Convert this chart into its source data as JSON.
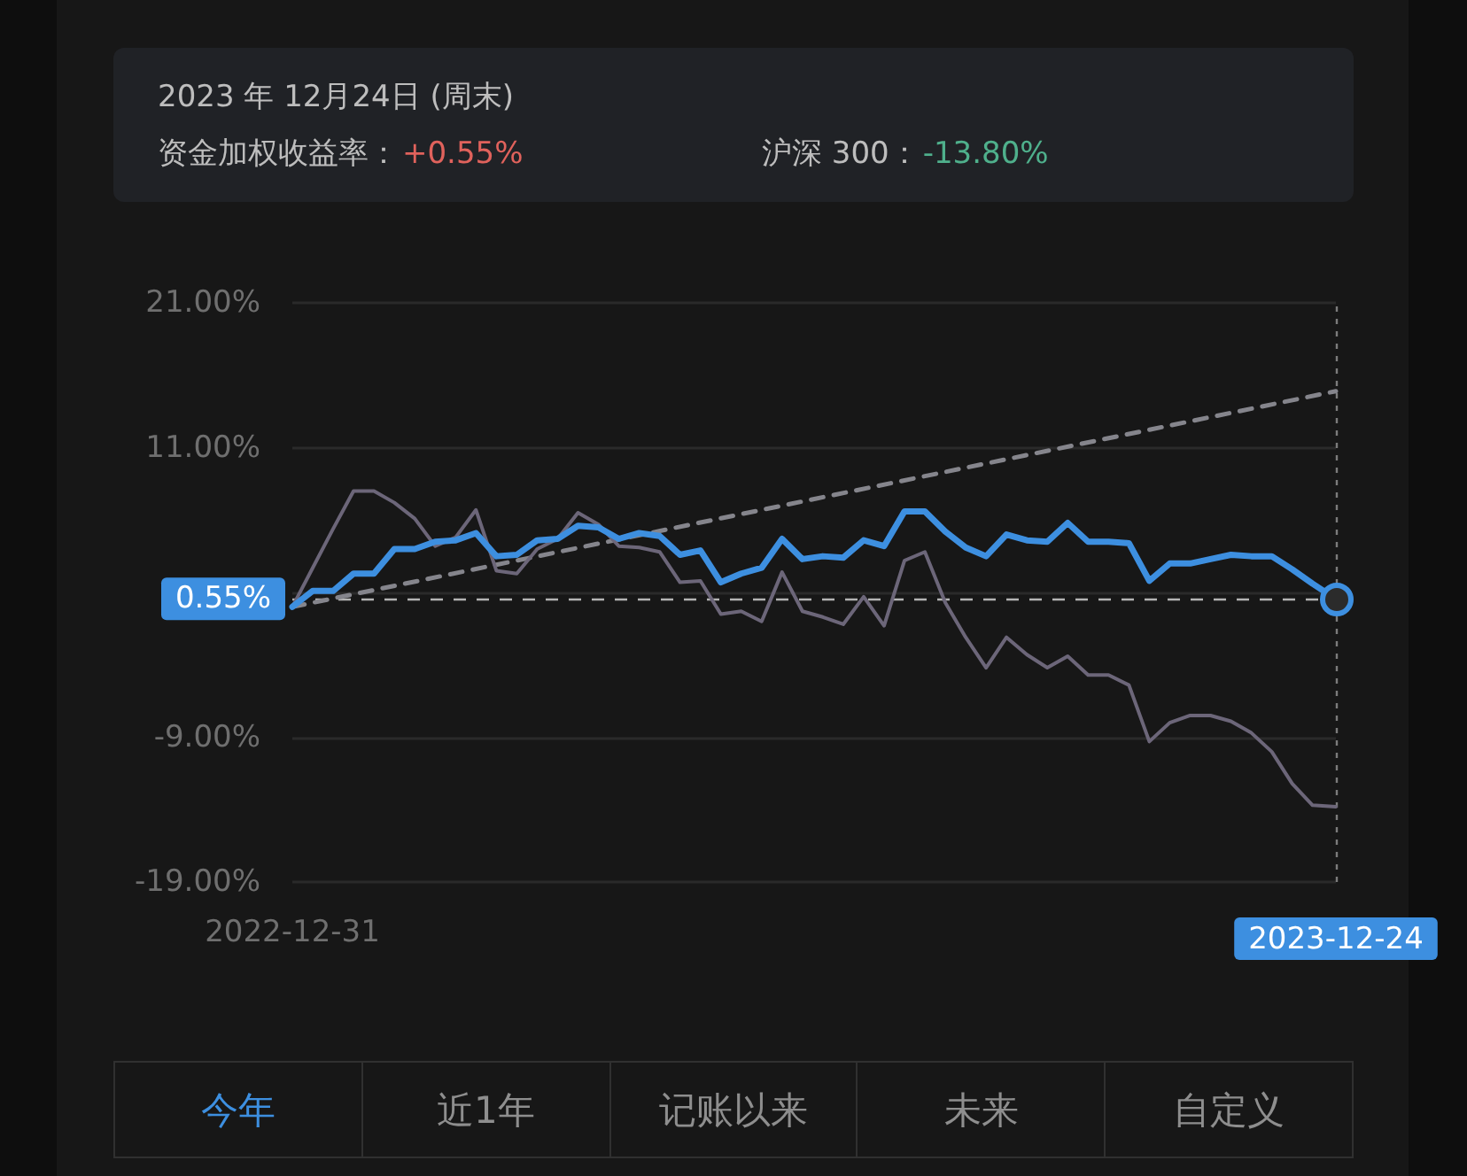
{
  "chart_data": {
    "type": "line",
    "x": [
      "2022-12-31",
      "2023-01-07",
      "2023-01-14",
      "2023-01-21",
      "2023-01-28",
      "2023-02-04",
      "2023-02-11",
      "2023-02-18",
      "2023-02-25",
      "2023-03-04",
      "2023-03-11",
      "2023-03-18",
      "2023-03-25",
      "2023-04-01",
      "2023-04-08",
      "2023-04-15",
      "2023-04-22",
      "2023-04-29",
      "2023-05-06",
      "2023-05-13",
      "2023-05-20",
      "2023-05-27",
      "2023-06-03",
      "2023-06-10",
      "2023-06-17",
      "2023-06-24",
      "2023-07-01",
      "2023-07-08",
      "2023-07-15",
      "2023-07-22",
      "2023-07-29",
      "2023-08-05",
      "2023-08-12",
      "2023-08-19",
      "2023-08-26",
      "2023-09-02",
      "2023-09-09",
      "2023-09-16",
      "2023-09-23",
      "2023-09-30",
      "2023-10-07",
      "2023-10-14",
      "2023-10-21",
      "2023-10-28",
      "2023-11-04",
      "2023-11-11",
      "2023-11-18",
      "2023-11-25",
      "2023-12-02",
      "2023-12-09",
      "2023-12-16",
      "2023-12-24"
    ],
    "series": [
      {
        "color": "#3d8fe0",
        "values": [
          0,
          1.1,
          1.1,
          2.3,
          2.3,
          4.0,
          4.0,
          4.5,
          4.6,
          5.1,
          3.5,
          3.6,
          4.6,
          4.7,
          5.6,
          5.5,
          4.7,
          5.1,
          4.9,
          3.6,
          3.9,
          1.7,
          2.3,
          2.7,
          4.7,
          3.3,
          3.5,
          3.4,
          4.6,
          4.2,
          6.6,
          6.6,
          5.2,
          4.1,
          3.5,
          5.0,
          4.6,
          4.5,
          5.8,
          4.5,
          4.5,
          4.4,
          1.8,
          3.0,
          3.0,
          3.3,
          3.6,
          3.5,
          3.5,
          2.6,
          1.6,
          0.55
        ]
      },
      {
        "color": "#6c6679",
        "values": [
          0,
          2.7,
          5.4,
          8.0,
          8.0,
          7.2,
          6.1,
          4.2,
          4.8,
          6.7,
          2.5,
          2.3,
          4.0,
          4.7,
          6.5,
          5.7,
          4.2,
          4.1,
          3.8,
          1.7,
          1.8,
          -0.5,
          -0.3,
          -1.0,
          2.4,
          -0.3,
          -0.7,
          -1.2,
          0.7,
          -1.3,
          3.2,
          3.8,
          0.3,
          -2.1,
          -4.2,
          -2.1,
          -3.3,
          -4.2,
          -3.4,
          -4.7,
          -4.7,
          -5.4,
          -9.3,
          -8.0,
          -7.5,
          -7.5,
          -7.9,
          -8.7,
          -10.0,
          -12.2,
          -13.7,
          -13.8
        ]
      },
      {
        "type": "line",
        "line_style": "dashed",
        "color": "#85858c",
        "x": [
          "2022-12-31",
          "2023-12-24"
        ],
        "values": [
          0,
          14.9
        ]
      }
    ],
    "xlim": [
      "2022-12-31",
      "2023-12-24"
    ],
    "xticks": [
      "2022-12-31",
      "2023-12-24"
    ],
    "ylim": [
      -19,
      21
    ],
    "yticks": [
      {
        "value": 21,
        "label": "21.00%"
      },
      {
        "value": 11,
        "label": "11.00%"
      },
      {
        "value": 1,
        "label": null
      },
      {
        "value": -9,
        "label": "-9.00%"
      },
      {
        "value": -19,
        "label": "-19.00%"
      }
    ],
    "grid": "y",
    "marker": "none",
    "ref_lines": [
      {
        "axis": "y",
        "value": 0.55,
        "label": "0.55%",
        "color": "#b4b4b4",
        "line_style": "dashed"
      },
      {
        "axis": "x",
        "value": "2023-12-24",
        "color": "#7c7c7c",
        "line_style": "dotted"
      }
    ],
    "annotations": [
      "2023 年 12月24日 (周末)",
      "资金加权收益率：",
      "+0.55%",
      "沪深 300：",
      "-13.80%",
      "今年",
      "近1年",
      "记账以来",
      "未来",
      "自定义"
    ]
  }
}
